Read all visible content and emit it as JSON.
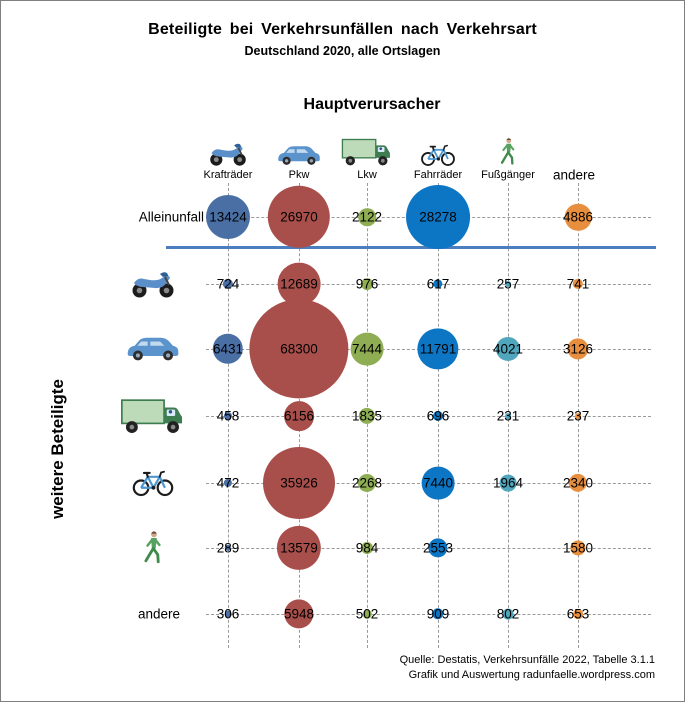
{
  "chart_data": {
    "type": "bubble",
    "title": "Beteiligte bei Verkehrsunfällen nach Verkehrsart",
    "subtitle": "Deutschland 2020, alle Ortslagen",
    "top_axis_label": "Hauptverursacher",
    "left_axis_label": "weitere Beteiligte",
    "size_encoding": "bubble radius proportional to sqrt(value)",
    "grid_color": "#9a9a9a",
    "divider_color": "#4a7ebf",
    "columns": [
      {
        "key": "kraftraeder",
        "label": "Krafträder",
        "icon": "motorcycle-icon",
        "color": "#4a6fa5"
      },
      {
        "key": "pkw",
        "label": "Pkw",
        "icon": "car-icon",
        "color": "#a94f4b"
      },
      {
        "key": "lkw",
        "label": "Lkw",
        "icon": "truck-icon",
        "color": "#8fae53"
      },
      {
        "key": "fahrraeder",
        "label": "Fahrräder",
        "icon": "bicycle-icon",
        "color": "#0d76c4"
      },
      {
        "key": "fussgaenger",
        "label": "Fußgänger",
        "icon": "pedestrian-icon",
        "color": "#4fa6bd"
      },
      {
        "key": "andere",
        "label": "andere",
        "icon": null,
        "color": "#e88f3f"
      }
    ],
    "rows": [
      {
        "key": "alleinunfall",
        "label": "Alleinunfall",
        "icon": null,
        "values": [
          13424,
          26970,
          2122,
          28278,
          null,
          4886
        ]
      },
      {
        "key": "kraftraeder",
        "label": null,
        "icon": "motorcycle-icon",
        "values": [
          724,
          12689,
          976,
          617,
          257,
          741
        ]
      },
      {
        "key": "pkw",
        "label": null,
        "icon": "car-icon",
        "values": [
          6431,
          68300,
          7444,
          11791,
          4021,
          3126
        ]
      },
      {
        "key": "lkw",
        "label": null,
        "icon": "truck-icon",
        "values": [
          458,
          6156,
          1835,
          696,
          231,
          237
        ]
      },
      {
        "key": "fahrraeder",
        "label": null,
        "icon": "bicycle-icon",
        "values": [
          472,
          35926,
          2268,
          7440,
          1964,
          2340
        ]
      },
      {
        "key": "fussgaenger",
        "label": null,
        "icon": "pedestrian-icon",
        "values": [
          289,
          13579,
          984,
          2553,
          null,
          1580
        ]
      },
      {
        "key": "andere",
        "label": "andere",
        "icon": null,
        "values": [
          306,
          5948,
          502,
          909,
          802,
          653
        ]
      }
    ],
    "source_line1": "Quelle: Destatis, Verkehrsunfälle 2022, Tabelle 3.1.1",
    "source_line2": "Grafik und Auswertung radunfaelle.wordpress.com"
  }
}
